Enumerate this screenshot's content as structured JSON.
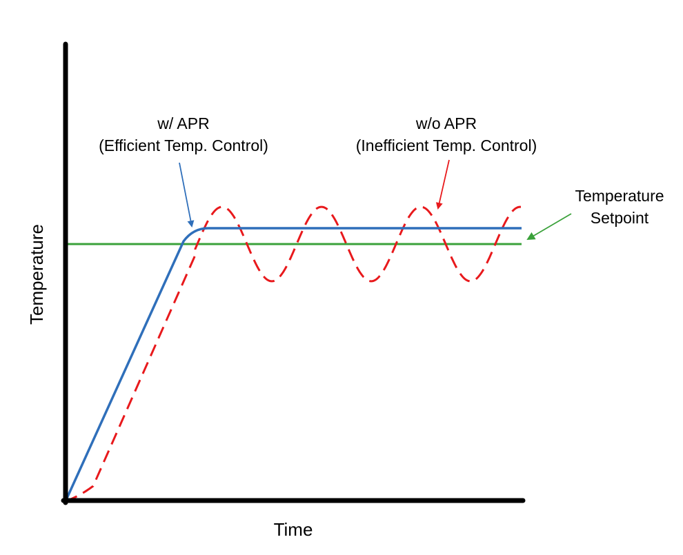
{
  "chart_data": {
    "type": "line",
    "title": "",
    "xlabel": "Time",
    "ylabel": "Temperature",
    "grid": false,
    "legend": "none",
    "axis_tick_labels": false,
    "series": [
      {
        "name": "w/ APR",
        "style": "solid",
        "color": "#2f6fba",
        "description_note": "ramps from origin to a stable level slightly above the setpoint"
      },
      {
        "name": "w/o APR",
        "style": "dashed",
        "color": "#e8191c"
      },
      {
        "name": "Temperature Setpoint",
        "style": "solid",
        "color": "#3aa13a"
      }
    ],
    "annotations": {
      "with_apr_line1": "w/ APR",
      "with_apr_line2": "(Efficient Temp. Control)",
      "without_apr_line1": "w/o APR",
      "without_apr_line2": "(Inefficient Temp. Control)",
      "setpoint_line1": "Temperature",
      "setpoint_line2": "Setpoint"
    }
  },
  "colors": {
    "axis": "#000000",
    "with_apr": "#2f6fba",
    "without_apr": "#e8191c",
    "setpoint": "#3aa13a"
  }
}
